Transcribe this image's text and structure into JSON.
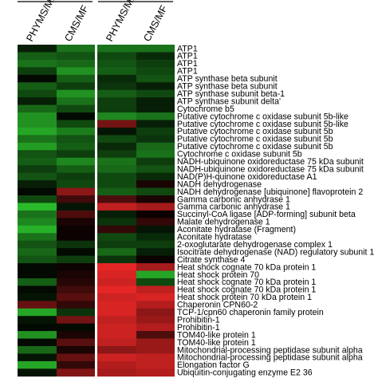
{
  "chart_data": {
    "type": "heatmap",
    "columns": [
      "PHYMS/MF",
      "CMS/MF",
      "PHYMS/MF",
      "CMS/MF"
    ],
    "column_groups": [
      [
        0,
        1
      ],
      [
        2,
        3
      ]
    ],
    "color_scale": {
      "negative": "#2fd02f",
      "zero": "#000000",
      "positive": "#ff2a2a",
      "range": [
        -1,
        1
      ]
    },
    "rows": [
      "ATP1",
      "ATP1",
      "ATP1",
      "ATP1",
      "ATP synthase beta subunit",
      "ATP synthase beta subunit",
      "ATP synthase subunit beta-1",
      "ATP synthase subunit delta'",
      "Cytochrome b5",
      "Putative cytochrome c oxidase subunit 5b-like",
      "Putative cytochrome c oxidase subunit 5b-like",
      "Putative cytochrome c oxidase subunit 5b",
      "Putative cytochrome c oxidase subunit 5b",
      "Putative cytochrome c oxidase subunit 5b",
      "Cytochrome c oxidase subunit 5b",
      "NADH-ubiquinone oxidoreductase 75 kDa subunit",
      "NADH-ubiquinone oxidoreductase 75 kDa subunit",
      "NAD(P)H-quinone oxidoreductase A1",
      "NADH dehydrogenase",
      "NADH dehydrogenase [ubiquinone] flavoprotein 2",
      "Gamma carbonic anhydrase 1",
      "Gamma carbonic anhydrase 1",
      "Succinyl-CoA ligase [ADP-forming] subunit beta",
      "Malate dehydrogenase 1",
      "Aconitate hydratase (Fragment)",
      "Aconitate hydratase",
      "2-oxoglutarate dehydrogenase complex 1",
      "Isocitrate dehydrogenase (NAD) regulatory subunit 1",
      "Citrate synthase 4",
      "Heat shock cognate 70 kDa protein 1",
      "Heat shock protein 70",
      "Heat shock cognate 70 kDa protein 1",
      "Heat shock cognate 70 kDa protein 1",
      "Heat shock protein 70 kDa protein 1",
      "Chaperonin CPN60-2",
      "TCP-1/cpn60 chaperonin family protein",
      "Prohibitin-1",
      "Prohibitin-1",
      "TOM40-like protein 1",
      "TOM40-like protein 1",
      "Mitochondrial-processing peptidase subunit alpha",
      "Mitochondrial-processing peptidase subunit alpha",
      "Elongation factor G",
      "Ubiquitin-conjugating enzyme E2 36"
    ],
    "values": [
      [
        -0.15,
        -0.55,
        -0.55,
        -0.55
      ],
      [
        -0.45,
        -0.4,
        -0.35,
        -0.2
      ],
      [
        -0.55,
        -0.5,
        -0.4,
        -0.3
      ],
      [
        -0.3,
        -0.7,
        -0.45,
        -0.35
      ],
      [
        -0.05,
        -0.45,
        -0.2,
        -0.4
      ],
      [
        -0.45,
        -0.3,
        -0.25,
        -0.15
      ],
      [
        -0.35,
        -0.7,
        -0.45,
        -0.35
      ],
      [
        -0.15,
        -0.55,
        -0.3,
        -0.15
      ],
      [
        -0.5,
        -0.35,
        -0.3,
        -0.15
      ],
      [
        -0.7,
        -0.05,
        -0.65,
        -0.55
      ],
      [
        -0.7,
        -0.35,
        0.45,
        -0.15
      ],
      [
        -0.8,
        -0.6,
        -0.1,
        -0.3
      ],
      [
        -0.55,
        -0.4,
        -0.35,
        -0.25
      ],
      [
        -0.75,
        -0.45,
        -0.2,
        -0.5
      ],
      [
        -0.4,
        -0.3,
        -0.3,
        -0.55
      ],
      [
        -0.45,
        -0.65,
        -0.55,
        -0.3
      ],
      [
        -0.3,
        -0.45,
        -0.5,
        -0.4
      ],
      [
        -0.4,
        -0.3,
        -0.35,
        -0.2
      ],
      [
        -0.15,
        -0.35,
        -0.35,
        0.1
      ],
      [
        -0.05,
        0.55,
        -0.45,
        -0.35
      ],
      [
        -0.35,
        0.25,
        0.3,
        0.1
      ],
      [
        -0.9,
        -0.1,
        0.75,
        0.65
      ],
      [
        -0.55,
        0.3,
        -0.15,
        0.05
      ],
      [
        -0.65,
        0.1,
        -0.25,
        0.2
      ],
      [
        -0.85,
        0.05,
        0.2,
        -0.1
      ],
      [
        -0.55,
        0.05,
        -0.35,
        -0.2
      ],
      [
        -0.4,
        -0.25,
        -0.3,
        -0.3
      ],
      [
        -0.5,
        -0.05,
        -0.5,
        -0.15
      ],
      [
        -0.4,
        -0.3,
        -0.25,
        0.05
      ],
      [
        -0.05,
        0.05,
        0.9,
        0.65
      ],
      [
        -0.05,
        0.1,
        0.85,
        -0.8
      ],
      [
        -0.45,
        0.15,
        0.8,
        -0.35
      ],
      [
        -0.05,
        0.25,
        0.9,
        0.75
      ],
      [
        -0.1,
        0.35,
        0.8,
        0.85
      ],
      [
        0.4,
        0.2,
        0.85,
        0.7
      ],
      [
        -0.8,
        -0.25,
        0.85,
        0.55
      ],
      [
        -0.1,
        0.45,
        0.75,
        0.6
      ],
      [
        -0.05,
        -0.05,
        0.8,
        0.7
      ],
      [
        -0.7,
        0.1,
        0.8,
        0.3
      ],
      [
        -0.05,
        0.35,
        0.75,
        0.6
      ],
      [
        -0.5,
        0.1,
        0.55,
        0.6
      ],
      [
        -0.1,
        0.4,
        0.8,
        0.75
      ],
      [
        -0.8,
        0.2,
        0.7,
        0.75
      ],
      [
        -0.1,
        0.5,
        0.65,
        0.7
      ]
    ]
  }
}
